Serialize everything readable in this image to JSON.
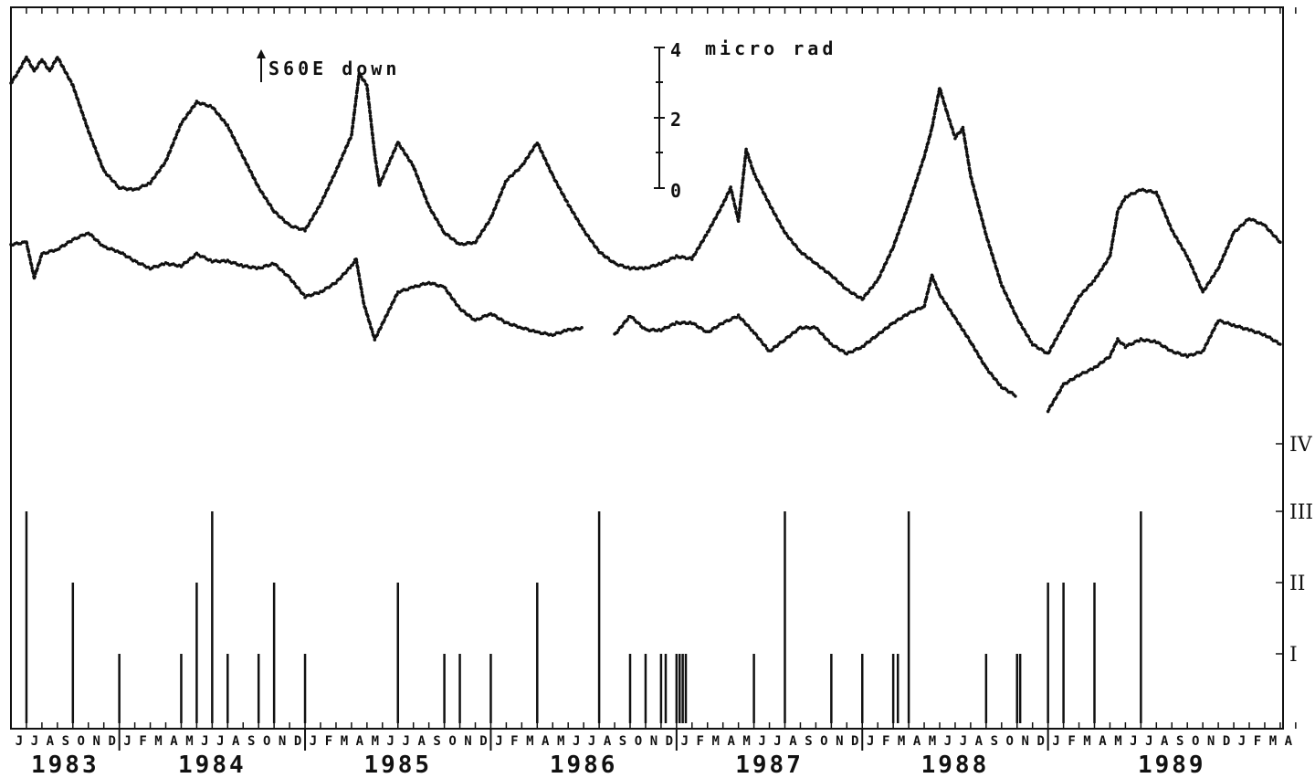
{
  "chart_data": {
    "type": "line",
    "title": "",
    "xlabel": "",
    "ylabel": "",
    "x_range": [
      "1983-06",
      "1990-04"
    ],
    "month_labels": [
      "J",
      "J",
      "A",
      "S",
      "O",
      "N",
      "D",
      "J",
      "F",
      "M",
      "A",
      "M",
      "J",
      "J",
      "A",
      "S",
      "O",
      "N",
      "D",
      "J",
      "F",
      "M",
      "A",
      "M",
      "J",
      "J",
      "A",
      "S",
      "O",
      "N",
      "D",
      "J",
      "F",
      "M",
      "A",
      "M",
      "J",
      "J",
      "A",
      "S",
      "O",
      "N",
      "D",
      "J",
      "F",
      "M",
      "A",
      "M",
      "J",
      "J",
      "A",
      "S",
      "O",
      "N",
      "D",
      "J",
      "F",
      "M",
      "A",
      "M",
      "J",
      "J",
      "A",
      "S",
      "O",
      "N",
      "D",
      "J",
      "F",
      "M",
      "A",
      "M",
      "J",
      "J",
      "A",
      "S",
      "O",
      "N",
      "D",
      "J",
      "F",
      "M",
      "A"
    ],
    "years": [
      {
        "year": "1983",
        "start": "1983-06"
      },
      {
        "year": "1984",
        "start": "1984-01"
      },
      {
        "year": "1985",
        "start": "1985-01"
      },
      {
        "year": "1986",
        "start": "1986-01"
      },
      {
        "year": "1987",
        "start": "1987-01"
      },
      {
        "year": "1988",
        "start": "1988-01"
      },
      {
        "year": "1989",
        "start": "1989-01"
      }
    ],
    "direction_note": "S60E down",
    "scale_bar": {
      "unit": "micro rad",
      "ticks": [
        "0",
        "2",
        "4"
      ],
      "values": [
        0,
        2,
        4
      ]
    },
    "tilt_ylim": [
      -13,
      3
    ],
    "series": [
      {
        "values": [
          [
            "1983-06",
            1.5
          ],
          [
            "1983-06.5",
            2.0
          ],
          [
            "1983-07",
            2.6
          ],
          [
            "1983-07.5",
            2.0
          ],
          [
            "1983-08",
            2.5
          ],
          [
            "1983-08.5",
            2.0
          ],
          [
            "1983-09",
            2.6
          ],
          [
            "1983-10",
            1.4
          ],
          [
            "1983-11",
            -0.5
          ],
          [
            "1983-12",
            -2.2
          ],
          [
            "1984-01",
            -2.9
          ],
          [
            "1984-02",
            -3.0
          ],
          [
            "1984-03",
            -2.7
          ],
          [
            "1984-04",
            -1.8
          ],
          [
            "1984-05",
            -0.2
          ],
          [
            "1984-06",
            0.7
          ],
          [
            "1984-07",
            0.5
          ],
          [
            "1984-08",
            -0.3
          ],
          [
            "1984-09",
            -1.6
          ],
          [
            "1984-10",
            -2.9
          ],
          [
            "1984-11",
            -3.9
          ],
          [
            "1984-12",
            -4.5
          ],
          [
            "1985-01",
            -4.7
          ],
          [
            "1985-02",
            -3.6
          ],
          [
            "1985-03",
            -2.2
          ],
          [
            "1985-04",
            -0.7
          ],
          [
            "1985-04.5",
            1.9
          ],
          [
            "1985-05",
            1.4
          ],
          [
            "1985-05.5",
            -1.5
          ],
          [
            "1985-05.8",
            -2.8
          ],
          [
            "1985-07",
            -1.0
          ],
          [
            "1985-08",
            -2.0
          ],
          [
            "1985-09",
            -3.7
          ],
          [
            "1985-10",
            -4.8
          ],
          [
            "1985-11",
            -5.3
          ],
          [
            "1985-12",
            -5.2
          ],
          [
            "1986-01",
            -4.2
          ],
          [
            "1986-02",
            -2.6
          ],
          [
            "1986-03",
            -2.0
          ],
          [
            "1986-04",
            -1.0
          ],
          [
            "1986-05",
            -2.4
          ],
          [
            "1986-06",
            -3.6
          ],
          [
            "1986-07",
            -4.7
          ],
          [
            "1986-08",
            -5.6
          ],
          [
            "1986-09",
            -6.1
          ],
          [
            "1986-10",
            -6.3
          ],
          [
            "1986-11",
            -6.3
          ],
          [
            "1986-12",
            -6.1
          ],
          [
            "1987-01",
            -5.8
          ],
          [
            "1987-02",
            -5.9
          ],
          [
            "1987-03",
            -4.8
          ],
          [
            "1987-04",
            -3.6
          ],
          [
            "1987-04.5",
            -2.9
          ],
          [
            "1987-05",
            -4.3
          ],
          [
            "1987-05.5",
            -1.3
          ],
          [
            "1987-06",
            -2.3
          ],
          [
            "1987-07",
            -3.6
          ],
          [
            "1987-08",
            -4.8
          ],
          [
            "1987-09",
            -5.6
          ],
          [
            "1987-10",
            -6.1
          ],
          [
            "1987-11",
            -6.6
          ],
          [
            "1987-12",
            -7.2
          ],
          [
            "1988-01",
            -7.6
          ],
          [
            "1988-02",
            -6.8
          ],
          [
            "1988-03",
            -5.4
          ],
          [
            "1988-04",
            -3.6
          ],
          [
            "1988-05",
            -1.6
          ],
          [
            "1988-05.5",
            -0.4
          ],
          [
            "1988-06",
            1.3
          ],
          [
            "1988-06.5",
            0.2
          ],
          [
            "1988-07",
            -0.8
          ],
          [
            "1988-07.5",
            -0.4
          ],
          [
            "1988-08",
            -2.4
          ],
          [
            "1988-09",
            -4.9
          ],
          [
            "1988-10",
            -7.0
          ],
          [
            "1988-11",
            -8.4
          ],
          [
            "1988-12",
            -9.5
          ],
          [
            "1989-01",
            -9.9
          ],
          [
            "1989-02",
            -8.7
          ],
          [
            "1989-03",
            -7.5
          ],
          [
            "1989-04",
            -6.8
          ],
          [
            "1989-05",
            -5.8
          ],
          [
            "1989-05.5",
            -3.9
          ],
          [
            "1989-06",
            -3.3
          ],
          [
            "1989-07",
            -3.0
          ],
          [
            "1989-08",
            -3.1
          ],
          [
            "1989-09",
            -4.7
          ],
          [
            "1989-10",
            -5.8
          ],
          [
            "1989-11",
            -7.3
          ],
          [
            "1989-12",
            -6.3
          ],
          [
            "1990-01",
            -4.8
          ],
          [
            "1990-02",
            -4.2
          ],
          [
            "1990-03",
            -4.5
          ],
          [
            "1990-04",
            -5.2
          ]
        ]
      },
      {
        "values": [
          [
            "1983-06",
            -5.3
          ],
          [
            "1983-07",
            -5.2
          ],
          [
            "1983-07.5",
            -6.7
          ],
          [
            "1983-08",
            -5.7
          ],
          [
            "1983-09",
            -5.5
          ],
          [
            "1983-10",
            -5.1
          ],
          [
            "1983-11",
            -4.8
          ],
          [
            "1983-12",
            -5.4
          ],
          [
            "1984-01",
            -5.6
          ],
          [
            "1984-02",
            -6.0
          ],
          [
            "1984-03",
            -6.3
          ],
          [
            "1984-04",
            -6.1
          ],
          [
            "1984-05",
            -6.2
          ],
          [
            "1984-06",
            -5.7
          ],
          [
            "1984-07",
            -6.0
          ],
          [
            "1984-08",
            -6.0
          ],
          [
            "1984-09",
            -6.2
          ],
          [
            "1984-10",
            -6.3
          ],
          [
            "1984-11",
            -6.1
          ],
          [
            "1984-12",
            -6.7
          ],
          [
            "1985-01",
            -7.5
          ],
          [
            "1985-02",
            -7.3
          ],
          [
            "1985-03",
            -6.9
          ],
          [
            "1985-04",
            -6.2
          ],
          [
            "1985-04.3",
            -5.9
          ],
          [
            "1985-04.8",
            -7.8
          ],
          [
            "1985-05.5",
            -9.3
          ],
          [
            "1985-07",
            -7.3
          ],
          [
            "1985-08",
            -7.1
          ],
          [
            "1985-09",
            -6.9
          ],
          [
            "1985-10",
            -7.1
          ],
          [
            "1985-11",
            -8.0
          ],
          [
            "1985-12",
            -8.5
          ],
          [
            "1986-01",
            -8.2
          ],
          [
            "1986-02",
            -8.6
          ],
          [
            "1986-03",
            -8.8
          ],
          [
            "1986-04",
            -9.0
          ],
          [
            "1986-05",
            -9.1
          ],
          [
            "1986-06",
            -8.9
          ],
          [
            "1986-07",
            -8.8
          ],
          [
            "1986-09",
            -9.1
          ],
          [
            "1986-10",
            -8.3
          ],
          [
            "1986-11",
            -8.9
          ],
          [
            "1986-12",
            -8.9
          ],
          [
            "1987-01",
            -8.6
          ],
          [
            "1987-02",
            -8.6
          ],
          [
            "1987-03",
            -9.0
          ],
          [
            "1987-04",
            -8.6
          ],
          [
            "1987-05",
            -8.3
          ],
          [
            "1987-06",
            -9.0
          ],
          [
            "1987-07",
            -9.8
          ],
          [
            "1987-08",
            -9.3
          ],
          [
            "1987-09",
            -8.8
          ],
          [
            "1987-10",
            -8.8
          ],
          [
            "1987-11",
            -9.5
          ],
          [
            "1987-12",
            -9.9
          ],
          [
            "1988-01",
            -9.6
          ],
          [
            "1988-02",
            -9.1
          ],
          [
            "1988-03",
            -8.6
          ],
          [
            "1988-04",
            -8.2
          ],
          [
            "1988-05",
            -7.9
          ],
          [
            "1988-05.5",
            -6.6
          ],
          [
            "1988-06",
            -7.4
          ],
          [
            "1988-07",
            -8.4
          ],
          [
            "1988-08",
            -9.4
          ],
          [
            "1988-09",
            -10.5
          ],
          [
            "1988-10",
            -11.3
          ],
          [
            "1988-11",
            -11.7
          ],
          [
            "1989-01",
            -12.3
          ],
          [
            "1989-02",
            -11.2
          ],
          [
            "1989-03",
            -10.8
          ],
          [
            "1989-04",
            -10.5
          ],
          [
            "1989-05",
            -10.0
          ],
          [
            "1989-05.5",
            -9.3
          ],
          [
            "1989-06",
            -9.6
          ],
          [
            "1989-07",
            -9.3
          ],
          [
            "1989-08",
            -9.4
          ],
          [
            "1989-09",
            -9.8
          ],
          [
            "1989-10",
            -10.0
          ],
          [
            "1989-11",
            -9.8
          ],
          [
            "1989-12",
            -8.5
          ],
          [
            "1990-01",
            -8.7
          ],
          [
            "1990-02",
            -8.9
          ],
          [
            "1990-03",
            -9.1
          ],
          [
            "1990-04",
            -9.5
          ]
        ]
      }
    ],
    "magnitude_classes": [
      "I",
      "II",
      "III",
      "IV"
    ],
    "events": [
      {
        "date": "1983-07",
        "class": 3
      },
      {
        "date": "1983-10",
        "class": 2
      },
      {
        "date": "1984-01",
        "class": 1
      },
      {
        "date": "1984-05",
        "class": 1
      },
      {
        "date": "1984-06",
        "class": 2
      },
      {
        "date": "1984-07",
        "class": 3
      },
      {
        "date": "1984-08",
        "class": 1
      },
      {
        "date": "1984-10",
        "class": 1
      },
      {
        "date": "1984-11",
        "class": 2
      },
      {
        "date": "1985-01",
        "class": 1
      },
      {
        "date": "1985-07",
        "class": 2
      },
      {
        "date": "1985-10",
        "class": 1
      },
      {
        "date": "1985-11",
        "class": 1
      },
      {
        "date": "1986-01",
        "class": 1
      },
      {
        "date": "1986-04",
        "class": 2
      },
      {
        "date": "1986-08",
        "class": 3
      },
      {
        "date": "1986-10",
        "class": 1
      },
      {
        "date": "1986-11",
        "class": 1
      },
      {
        "date": "1986-12",
        "class": 1
      },
      {
        "date": "1986-12.3",
        "class": 1
      },
      {
        "date": "1987-01",
        "class": 1
      },
      {
        "date": "1987-01.2",
        "class": 1
      },
      {
        "date": "1987-01.4",
        "class": 1
      },
      {
        "date": "1987-01.6",
        "class": 1
      },
      {
        "date": "1987-06",
        "class": 1
      },
      {
        "date": "1987-08",
        "class": 3
      },
      {
        "date": "1987-11",
        "class": 1
      },
      {
        "date": "1988-01",
        "class": 1
      },
      {
        "date": "1988-03",
        "class": 1
      },
      {
        "date": "1988-03.3",
        "class": 1
      },
      {
        "date": "1988-04",
        "class": 3
      },
      {
        "date": "1988-09",
        "class": 1
      },
      {
        "date": "1988-11",
        "class": 1
      },
      {
        "date": "1988-11.2",
        "class": 1
      },
      {
        "date": "1989-01",
        "class": 2
      },
      {
        "date": "1989-02",
        "class": 2
      },
      {
        "date": "1989-04",
        "class": 2
      },
      {
        "date": "1989-07",
        "class": 3
      }
    ]
  }
}
